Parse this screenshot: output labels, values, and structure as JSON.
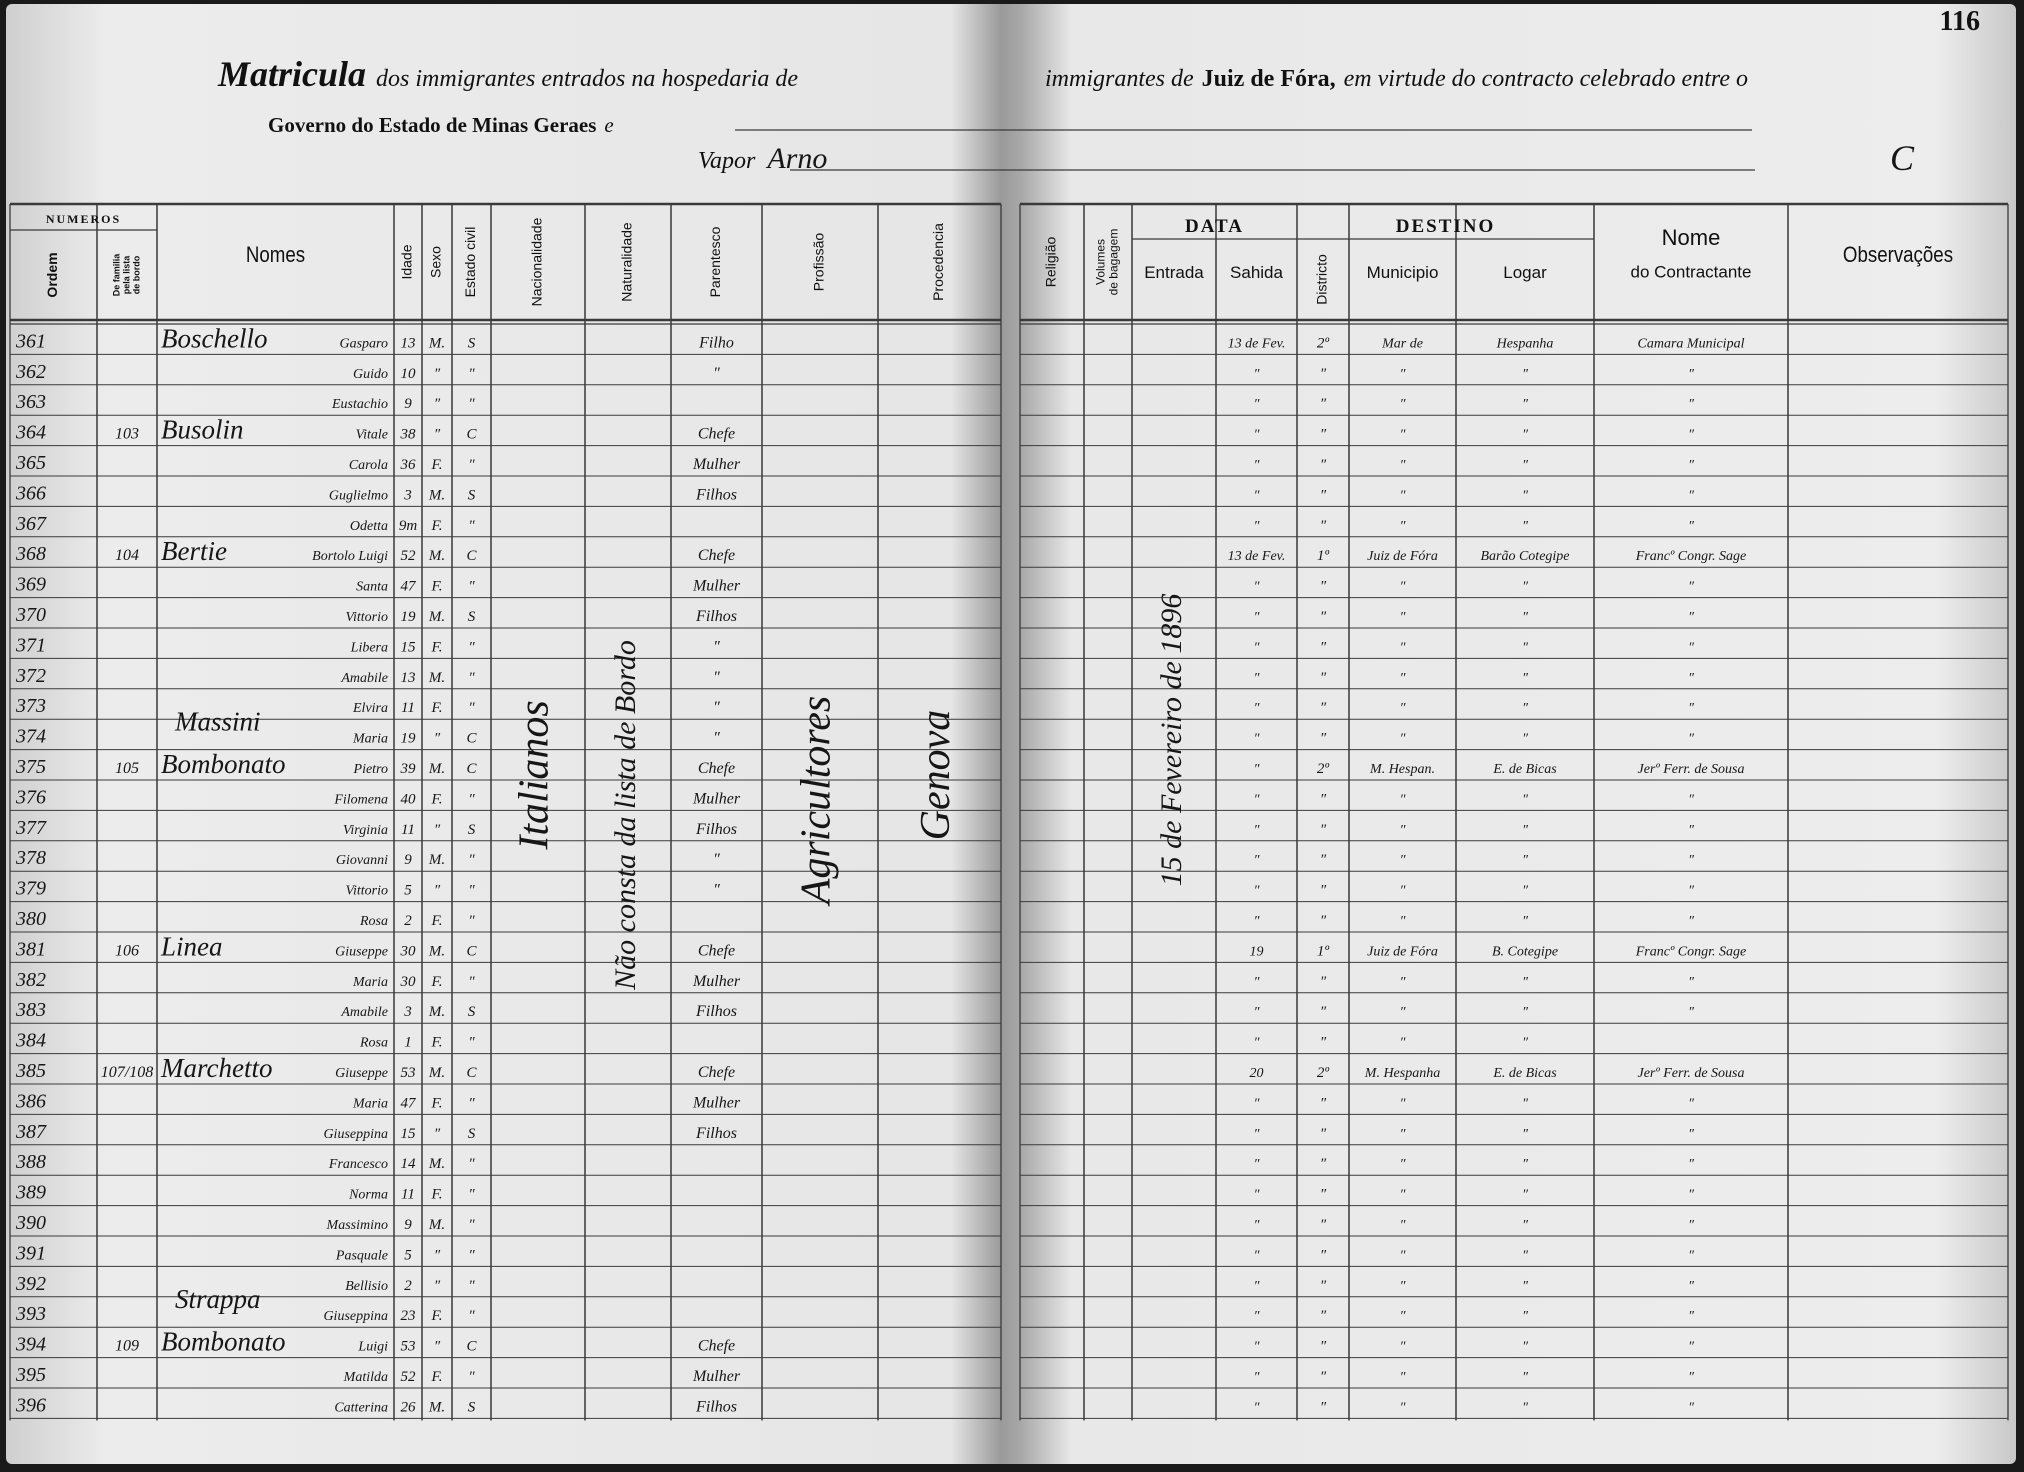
{
  "page_number": "116",
  "header": {
    "title": "Matricula",
    "title_left": "dos immigrantes entrados na hospedaria de",
    "title_right_a": "immigrantes de",
    "title_right_place": "Juiz de Fóra,",
    "title_right_b": "em virtude do contracto celebrado entre o",
    "line2": "Governo do Estado de Minas Geraes",
    "line2_end": "e",
    "vapor_label": "Vapor",
    "vapor_name": "Arno",
    "margin_note": "C"
  },
  "groups": {
    "numeros": "NUMEROS",
    "data": "DATA",
    "destino": "DESTINO"
  },
  "columns": {
    "ordem": [
      "Ordem"
    ],
    "familia": [
      "De familia",
      "pela lista",
      "de bordo"
    ],
    "nomes": [
      "Nomes"
    ],
    "idade": [
      "Idade"
    ],
    "sexo": [
      "Sexo"
    ],
    "estado": [
      "Estado civil"
    ],
    "nacionalidade": [
      "Nacionalidade"
    ],
    "naturalidade": [
      "Naturalidade"
    ],
    "parentesco": [
      "Parentesco"
    ],
    "profissao": [
      "Profissão"
    ],
    "procedencia": [
      "Procedencia"
    ],
    "religiao": [
      "Religião"
    ],
    "volumes": [
      "Volumes",
      "de bagagem"
    ],
    "entrada": [
      "Entrada"
    ],
    "sahida": [
      "Sahida"
    ],
    "districto": [
      "Districto"
    ],
    "municipio": [
      "Municipio"
    ],
    "logar": [
      "Logar"
    ],
    "contractante": [
      "Nome",
      "do Contractante"
    ],
    "observacoes": [
      "Observações"
    ]
  },
  "vertical_entries": {
    "nacionalidade": "Italianos",
    "naturalidade": "Não consta da lista de Bordo",
    "profissao": "Agricultores",
    "procedencia": "Genova",
    "entrada": "15 de Fevereiro de 1896"
  },
  "rows": [
    {
      "ordem": "361",
      "sobrenome": "Boschello",
      "nome": "Gasparo",
      "idade": "13",
      "sexo": "M.",
      "estado": "S",
      "parentesco": "Filho",
      "sahida": "13 de Fev.",
      "districto": "2º",
      "municipio": "Mar de",
      "logar": "Hespanha",
      "contractante": "Camara Municipal"
    },
    {
      "ordem": "362",
      "nome": "Guido",
      "idade": "10",
      "sexo": "″",
      "estado": "″",
      "parentesco": "″",
      "sahida": "″",
      "districto": "″",
      "municipio": "″",
      "logar": "″",
      "contractante": "″"
    },
    {
      "ordem": "363",
      "nome": "Eustachio",
      "idade": "9",
      "sexo": "″",
      "estado": "″",
      "sahida": "″",
      "districto": "″",
      "municipio": "″",
      "logar": "″",
      "contractante": "″"
    },
    {
      "ordem": "364",
      "familia": "103",
      "sobrenome": "Busolin",
      "nome": "Vitale",
      "idade": "38",
      "sexo": "″",
      "estado": "C",
      "parentesco": "Chefe",
      "sahida": "″",
      "districto": "″",
      "municipio": "″",
      "logar": "″",
      "contractante": "″"
    },
    {
      "ordem": "365",
      "nome": "Carola",
      "idade": "36",
      "sexo": "F.",
      "estado": "″",
      "parentesco": "Mulher",
      "sahida": "″",
      "districto": "″",
      "municipio": "″",
      "logar": "″",
      "contractante": "″"
    },
    {
      "ordem": "366",
      "nome": "Guglielmo",
      "idade": "3",
      "sexo": "M.",
      "estado": "S",
      "parentesco": "Filhos",
      "sahida": "″",
      "districto": "″",
      "municipio": "″",
      "logar": "″",
      "contractante": "″"
    },
    {
      "ordem": "367",
      "nome": "Odetta",
      "idade": "9m",
      "sexo": "F.",
      "estado": "″",
      "sahida": "″",
      "districto": "″",
      "municipio": "″",
      "logar": "″",
      "contractante": "″"
    },
    {
      "ordem": "368",
      "familia": "104",
      "sobrenome": "Bertie",
      "nome": "Bortolo Luigi",
      "idade": "52",
      "sexo": "M.",
      "estado": "C",
      "parentesco": "Chefe",
      "sahida": "13 de Fev.",
      "districto": "1º",
      "municipio": "Juiz de Fóra",
      "logar": "Barão Cotegipe",
      "contractante": "Francº Congr. Sage"
    },
    {
      "ordem": "369",
      "nome": "Santa",
      "idade": "47",
      "sexo": "F.",
      "estado": "″",
      "parentesco": "Mulher",
      "sahida": "″",
      "districto": "″",
      "municipio": "″",
      "logar": "″",
      "contractante": "″"
    },
    {
      "ordem": "370",
      "nome": "Vittorio",
      "idade": "19",
      "sexo": "M.",
      "estado": "S",
      "parentesco": "Filhos",
      "sahida": "″",
      "districto": "″",
      "municipio": "″",
      "logar": "″",
      "contractante": "″"
    },
    {
      "ordem": "371",
      "nome": "Libera",
      "idade": "15",
      "sexo": "F.",
      "estado": "″",
      "parentesco": "″",
      "sahida": "″",
      "districto": "″",
      "municipio": "″",
      "logar": "″",
      "contractante": "″"
    },
    {
      "ordem": "372",
      "nome": "Amabile",
      "idade": "13",
      "sexo": "M.",
      "estado": "″",
      "parentesco": "″",
      "sahida": "″",
      "districto": "″",
      "municipio": "″",
      "logar": "″",
      "contractante": "″"
    },
    {
      "ordem": "373",
      "nome": "Elvira",
      "idade": "11",
      "sexo": "F.",
      "estado": "″",
      "parentesco": "″",
      "sahida": "″",
      "districto": "″",
      "municipio": "″",
      "logar": "″",
      "contractante": "″"
    },
    {
      "ordem": "374",
      "sobrenome": "Massini",
      "nome": "Maria",
      "idade": "19",
      "sexo": "″",
      "estado": "C",
      "parentesco": "″",
      "sahida": "″",
      "districto": "″",
      "municipio": "″",
      "logar": "″",
      "contractante": "″"
    },
    {
      "ordem": "375",
      "familia": "105",
      "sobrenome": "Bombonato",
      "nome": "Pietro",
      "idade": "39",
      "sexo": "M.",
      "estado": "C",
      "parentesco": "Chefe",
      "sahida": "″",
      "districto": "2º",
      "municipio": "M. Hespan.",
      "logar": "E. de Bicas",
      "contractante": "Jerº Ferr. de Sousa"
    },
    {
      "ordem": "376",
      "nome": "Filomena",
      "idade": "40",
      "sexo": "F.",
      "estado": "″",
      "parentesco": "Mulher",
      "sahida": "″",
      "districto": "″",
      "municipio": "″",
      "logar": "″",
      "contractante": "″"
    },
    {
      "ordem": "377",
      "nome": "Virginia",
      "idade": "11",
      "sexo": "″",
      "estado": "S",
      "parentesco": "Filhos",
      "sahida": "″",
      "districto": "″",
      "municipio": "″",
      "logar": "″",
      "contractante": "″"
    },
    {
      "ordem": "378",
      "nome": "Giovanni",
      "idade": "9",
      "sexo": "M.",
      "estado": "″",
      "parentesco": "″",
      "sahida": "″",
      "districto": "″",
      "municipio": "″",
      "logar": "″",
      "contractante": "″"
    },
    {
      "ordem": "379",
      "nome": "Vittorio",
      "idade": "5",
      "sexo": "″",
      "estado": "″",
      "parentesco": "″",
      "sahida": "″",
      "districto": "″",
      "municipio": "″",
      "logar": "″",
      "contractante": "″"
    },
    {
      "ordem": "380",
      "nome": "Rosa",
      "idade": "2",
      "sexo": "F.",
      "estado": "″",
      "sahida": "″",
      "districto": "″",
      "municipio": "″",
      "logar": "″",
      "contractante": "″"
    },
    {
      "ordem": "381",
      "familia": "106",
      "sobrenome": "Linea",
      "nome": "Giuseppe",
      "idade": "30",
      "sexo": "M.",
      "estado": "C",
      "parentesco": "Chefe",
      "sahida": "19",
      "districto": "1º",
      "municipio": "Juiz de Fóra",
      "logar": "B. Cotegipe",
      "contractante": "Francº Congr. Sage"
    },
    {
      "ordem": "382",
      "nome": "Maria",
      "idade": "30",
      "sexo": "F.",
      "estado": "″",
      "parentesco": "Mulher",
      "sahida": "″",
      "districto": "″",
      "municipio": "″",
      "logar": "″",
      "contractante": "″"
    },
    {
      "ordem": "383",
      "nome": "Amabile",
      "idade": "3",
      "sexo": "M.",
      "estado": "S",
      "parentesco": "Filhos",
      "sahida": "″",
      "districto": "″",
      "municipio": "″",
      "logar": "″",
      "contractante": "″"
    },
    {
      "ordem": "384",
      "nome": "Rosa",
      "idade": "1",
      "sexo": "F.",
      "estado": "″",
      "sahida": "″",
      "districto": "″",
      "municipio": "″",
      "logar": "″"
    },
    {
      "ordem": "385",
      "familia": "107/108",
      "sobrenome": "Marchetto",
      "nome": "Giuseppe",
      "idade": "53",
      "sexo": "M.",
      "estado": "C",
      "parentesco": "Chefe",
      "sahida": "20",
      "districto": "2º",
      "municipio": "M. Hespanha",
      "logar": "E. de Bicas",
      "contractante": "Jerº Ferr. de Sousa"
    },
    {
      "ordem": "386",
      "nome": "Maria",
      "idade": "47",
      "sexo": "F.",
      "estado": "″",
      "parentesco": "Mulher",
      "sahida": "″",
      "districto": "″",
      "municipio": "″",
      "logar": "″",
      "contractante": "″"
    },
    {
      "ordem": "387",
      "nome": "Giuseppina",
      "idade": "15",
      "sexo": "″",
      "estado": "S",
      "parentesco": "Filhos",
      "sahida": "″",
      "districto": "″",
      "municipio": "″",
      "logar": "″",
      "contractante": "″"
    },
    {
      "ordem": "388",
      "nome": "Francesco",
      "idade": "14",
      "sexo": "M.",
      "estado": "″",
      "sahida": "″",
      "districto": "″",
      "municipio": "″",
      "logar": "″",
      "contractante": "″"
    },
    {
      "ordem": "389",
      "nome": "Norma",
      "idade": "11",
      "sexo": "F.",
      "estado": "″",
      "sahida": "″",
      "districto": "″",
      "municipio": "″",
      "logar": "″",
      "contractante": "″"
    },
    {
      "ordem": "390",
      "nome": "Massimino",
      "idade": "9",
      "sexo": "M.",
      "estado": "″",
      "sahida": "″",
      "districto": "″",
      "municipio": "″",
      "logar": "″",
      "contractante": "″"
    },
    {
      "ordem": "391",
      "nome": "Pasquale",
      "idade": "5",
      "sexo": "″",
      "estado": "″",
      "sahida": "″",
      "districto": "″",
      "municipio": "″",
      "logar": "″",
      "contractante": "″"
    },
    {
      "ordem": "392",
      "nome": "Bellisio",
      "idade": "2",
      "sexo": "″",
      "estado": "″",
      "sahida": "″",
      "districto": "″",
      "municipio": "″",
      "logar": "″",
      "contractante": "″"
    },
    {
      "ordem": "393",
      "sobrenome": "Strappa",
      "nome": "Giuseppina",
      "idade": "23",
      "sexo": "F.",
      "estado": "″",
      "sahida": "″",
      "districto": "″",
      "municipio": "″",
      "logar": "″",
      "contractante": "″"
    },
    {
      "ordem": "394",
      "familia": "109",
      "sobrenome": "Bombonato",
      "nome": "Luigi",
      "idade": "53",
      "sexo": "″",
      "estado": "C",
      "parentesco": "Chefe",
      "sahida": "″",
      "districto": "″",
      "municipio": "″",
      "logar": "″",
      "contractante": "″"
    },
    {
      "ordem": "395",
      "nome": "Matilda",
      "idade": "52",
      "sexo": "F.",
      "estado": "″",
      "parentesco": "Mulher",
      "sahida": "″",
      "districto": "″",
      "municipio": "″",
      "logar": "″",
      "contractante": "″"
    },
    {
      "ordem": "396",
      "nome": "Catterina",
      "idade": "26",
      "sexo": "M.",
      "estado": "S",
      "parentesco": "Filhos",
      "sahida": "″",
      "districto": "″",
      "municipio": "″",
      "logar": "″",
      "contractante": "″"
    }
  ]
}
